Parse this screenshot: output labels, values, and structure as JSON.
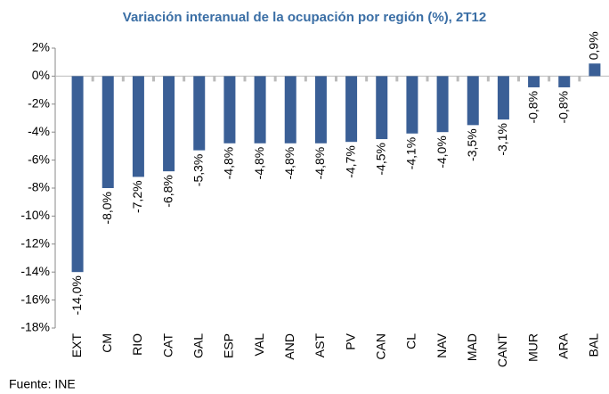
{
  "chart_data": {
    "type": "bar",
    "title": "Variación interanual de la ocupación por región (%), 2T12",
    "source": "Fuente: INE",
    "categories": [
      "EXT",
      "CM",
      "RIO",
      "CAT",
      "GAL",
      "ESP",
      "VAL",
      "AND",
      "AST",
      "PV",
      "CAN",
      "CL",
      "NAV",
      "MAD",
      "CANT",
      "MUR",
      "ARA",
      "BAL"
    ],
    "values": [
      -14.0,
      -8.0,
      -7.2,
      -6.8,
      -5.3,
      -4.8,
      -4.8,
      -4.8,
      -4.8,
      -4.7,
      -4.5,
      -4.1,
      -4.0,
      -3.5,
      -3.1,
      -0.8,
      -0.8,
      0.9
    ],
    "value_labels": [
      "-14,0%",
      "-8,0%",
      "-7,2%",
      "-6,8%",
      "-5,3%",
      "-4,8%",
      "-4,8%",
      "-4,8%",
      "-4,8%",
      "-4,7%",
      "-4,5%",
      "-4,1%",
      "-4,0%",
      "-3,5%",
      "-3,1%",
      "-0,8%",
      "-0,8%",
      "0,9%"
    ],
    "color": "#3a5f96",
    "ylim": [
      -18,
      2
    ],
    "yticks": [
      {
        "value": -18,
        "label": "-18%"
      },
      {
        "value": -16,
        "label": "-16%"
      },
      {
        "value": -14,
        "label": "-14%"
      },
      {
        "value": -12,
        "label": "-12%"
      },
      {
        "value": -10,
        "label": "-10%"
      },
      {
        "value": -8,
        "label": "-8%"
      },
      {
        "value": -6,
        "label": "-6%"
      },
      {
        "value": -4,
        "label": "-4%"
      },
      {
        "value": -2,
        "label": "-2%"
      },
      {
        "value": 0,
        "label": "0%"
      },
      {
        "value": 2,
        "label": "2%"
      }
    ],
    "grid": false
  }
}
